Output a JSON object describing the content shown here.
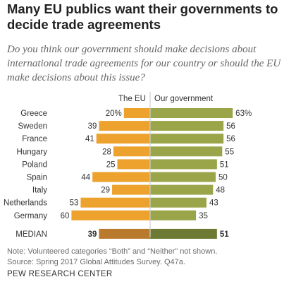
{
  "chart_data": {
    "type": "bar",
    "title": "Many EU publics want their governments to decide trade agreements",
    "subtitle": "Do you think our government should make decisions about international trade agreements for our country or should the EU make decisions about this issue?",
    "legend": [
      "The EU",
      "Our government"
    ],
    "categories": [
      "Greece",
      "Sweden",
      "France",
      "Hungary",
      "Poland",
      "Spain",
      "Italy",
      "Netherlands",
      "Germany",
      "MEDIAN"
    ],
    "series": [
      {
        "name": "The EU",
        "values": [
          20,
          39,
          41,
          28,
          25,
          44,
          29,
          53,
          60,
          39
        ],
        "labels": [
          "20%",
          "39",
          "41",
          "28",
          "25",
          "44",
          "29",
          "53",
          "60",
          "39"
        ],
        "color": "#eda22d",
        "median_color": "#b97a2e"
      },
      {
        "name": "Our government",
        "values": [
          63,
          56,
          56,
          55,
          51,
          50,
          48,
          43,
          35,
          51
        ],
        "labels": [
          "63%",
          "56",
          "56",
          "55",
          "51",
          "50",
          "48",
          "43",
          "35",
          "51"
        ],
        "color": "#9aa54a",
        "median_color": "#6d7a33"
      }
    ]
  },
  "notes": {
    "note": "Note: Volunteered categories “Both” and “Neither” not shown.",
    "source": "Source: Spring 2017 Global Attitudes Survey. Q47a."
  },
  "footer": {
    "org": "PEW RESEARCH CENTER"
  }
}
